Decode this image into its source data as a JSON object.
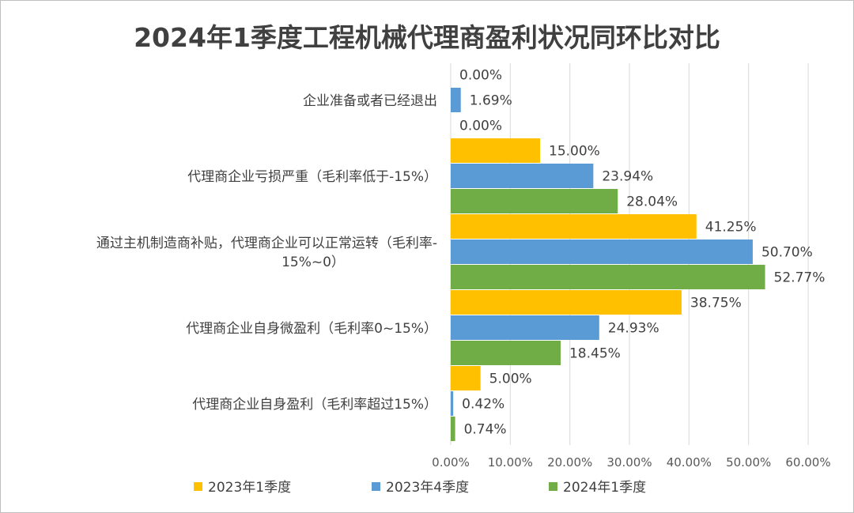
{
  "chart_data": {
    "type": "bar",
    "orientation": "horizontal",
    "title": "2024年1季度工程机械代理商盈利状况同环比对比",
    "categories": [
      [
        "企业准备或者已经退出"
      ],
      [
        "代理商企业亏损严重（毛利率低于-15%）"
      ],
      [
        "通过主机制造商补贴，代理商企业可以正常运转（毛利率-",
        "15%~0）"
      ],
      [
        "代理商企业自身微盈利（毛利率0~15%）"
      ],
      [
        "代理商企业自身盈利（毛利率超过15%）"
      ]
    ],
    "series": [
      {
        "name": "2023年1季度",
        "color": "#FFC000",
        "values": [
          0.0,
          15.0,
          41.25,
          38.75,
          5.0
        ]
      },
      {
        "name": "2023年4季度",
        "color": "#5B9BD5",
        "values": [
          1.69,
          23.94,
          50.7,
          24.93,
          0.42
        ]
      },
      {
        "name": "2024年1季度",
        "color": "#70AD47",
        "values": [
          0.0,
          28.04,
          52.77,
          18.45,
          0.74
        ]
      }
    ],
    "xlim": [
      0,
      60
    ],
    "xticks": [
      0,
      10,
      20,
      30,
      40,
      50,
      60
    ],
    "tick_labels": [
      "0.00%",
      "10.00%",
      "20.00%",
      "30.00%",
      "40.00%",
      "50.00%",
      "60.00%"
    ],
    "value_format_suffix": "%",
    "grid": true,
    "legend_position": "bottom"
  }
}
